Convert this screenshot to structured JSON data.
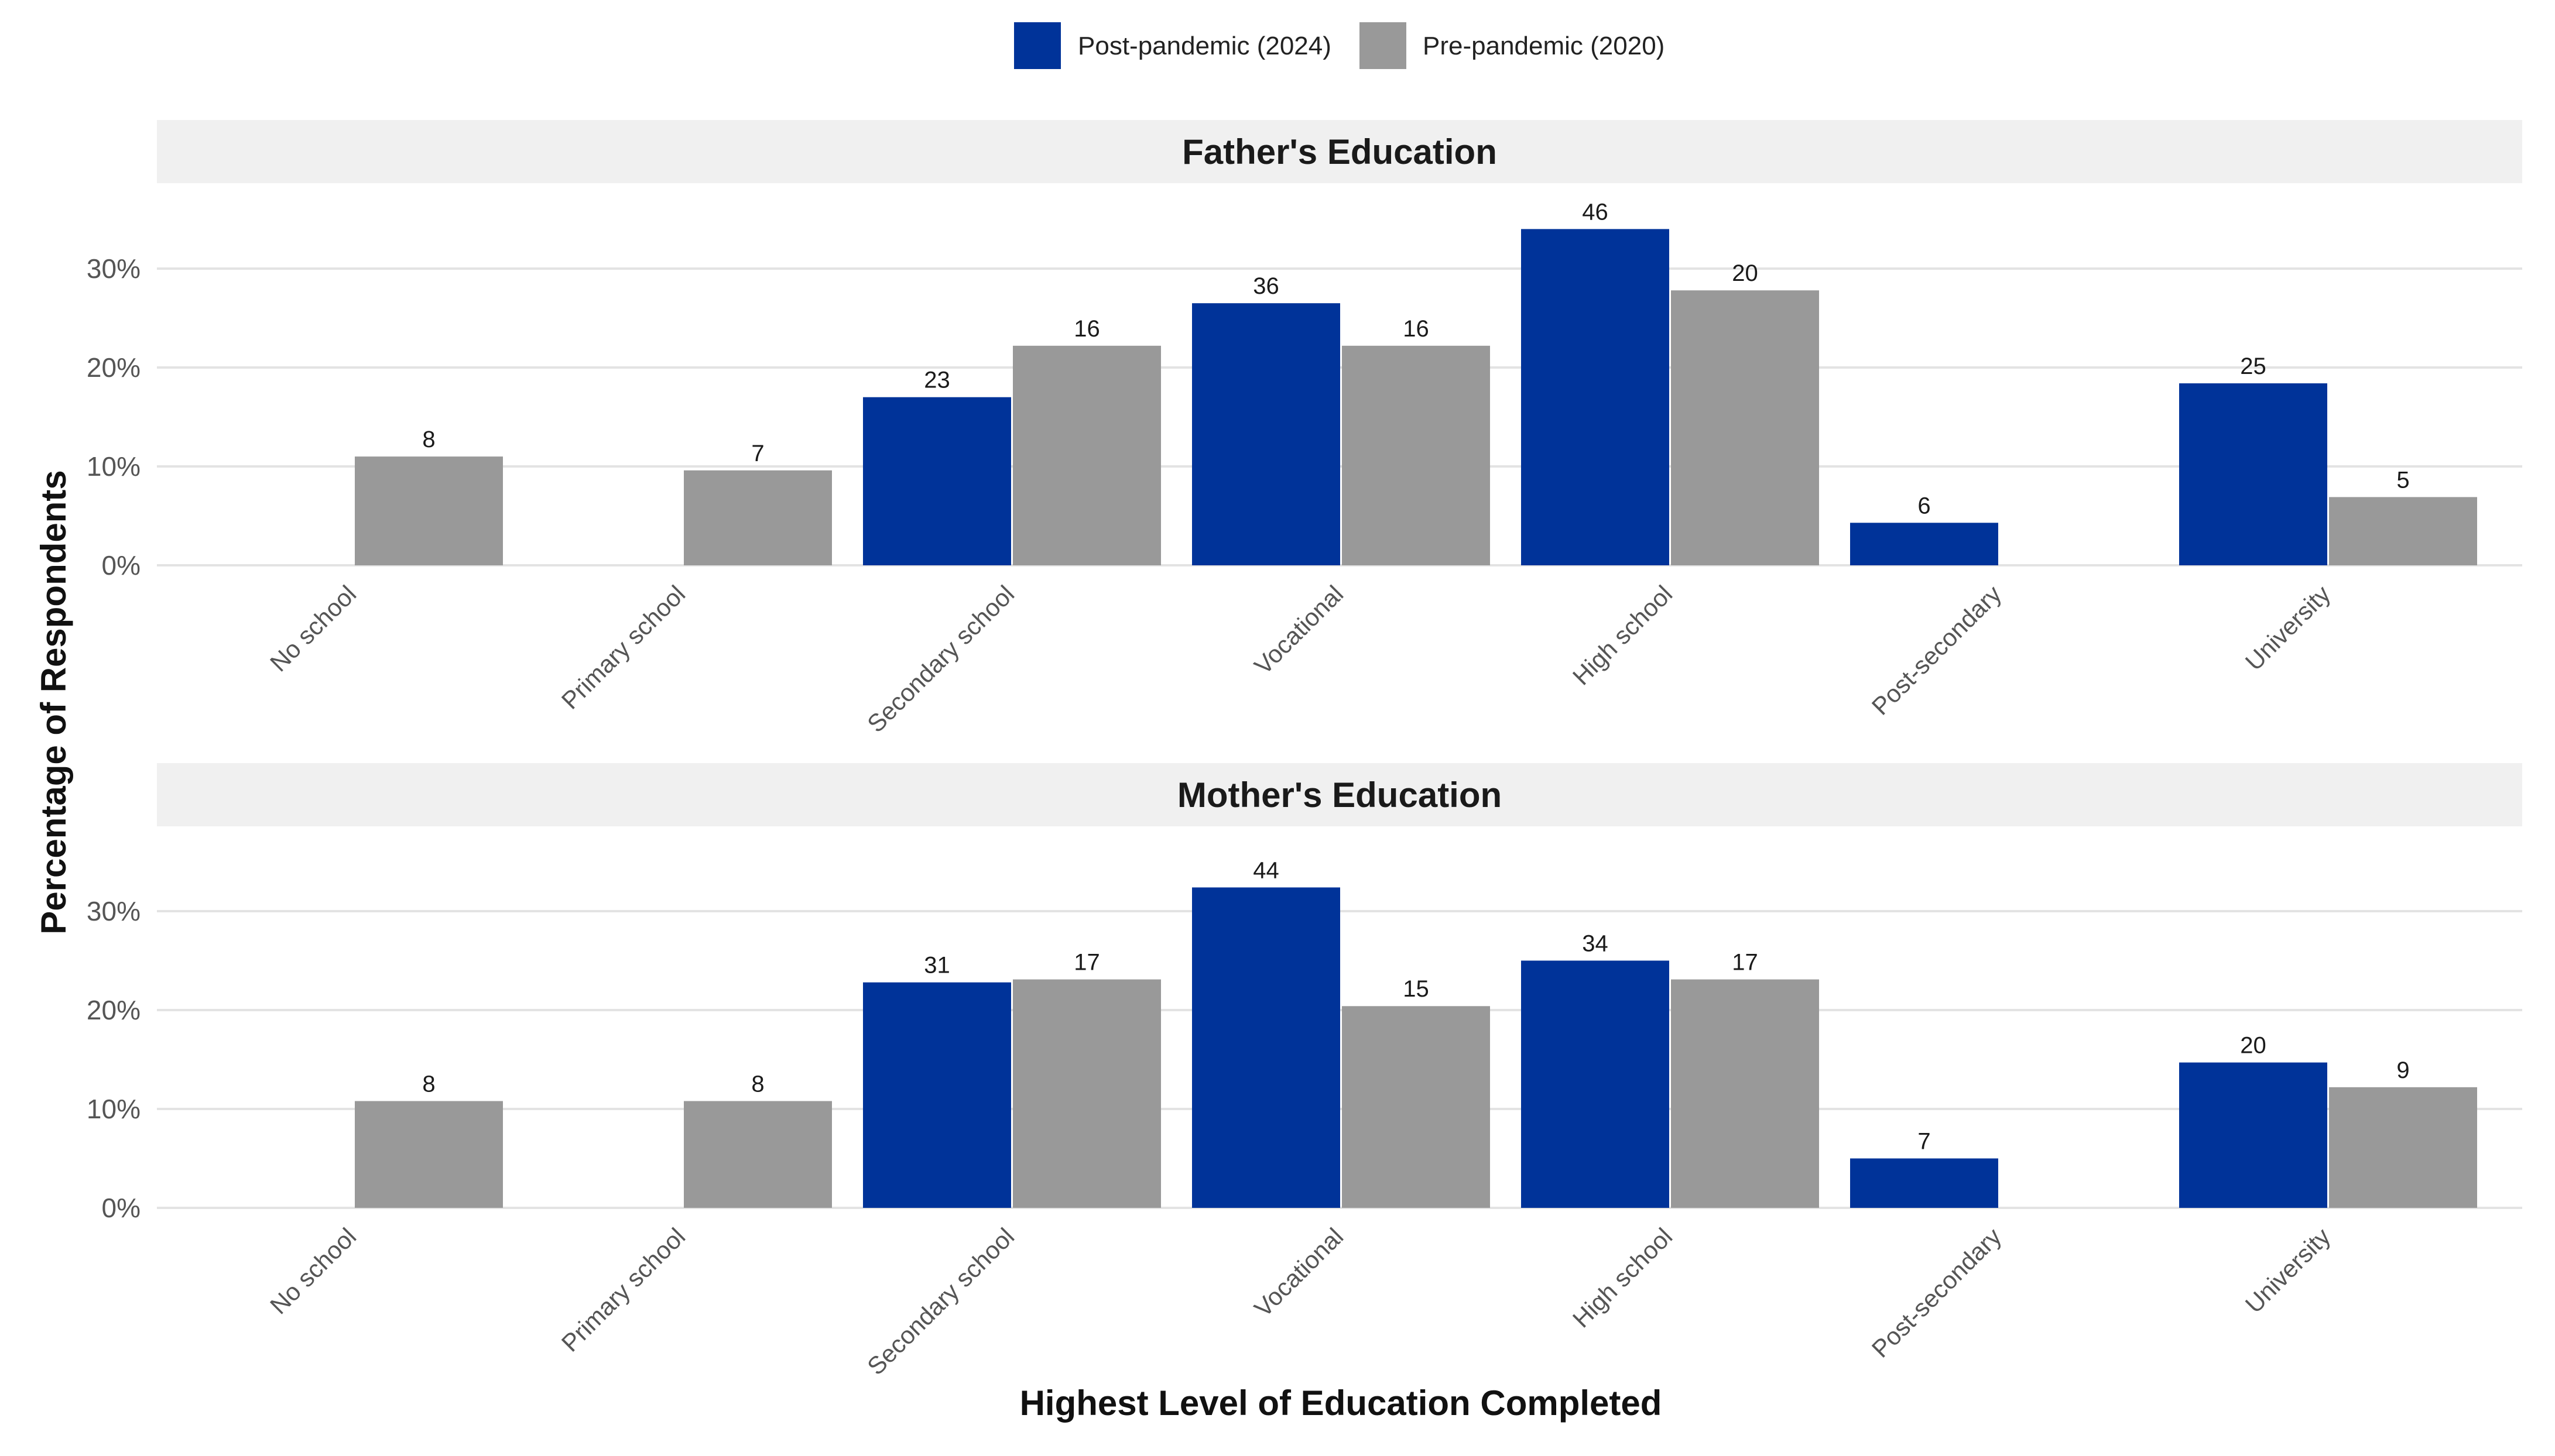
{
  "chart_data": {
    "type": "bar",
    "legend": {
      "position": "top",
      "entries": [
        {
          "name": "Post-pandemic (2024)",
          "color": "#003399"
        },
        {
          "name": "Pre-pandemic (2020)",
          "color": "#999999"
        }
      ]
    },
    "xlabel": "Highest Level of Education Completed",
    "ylabel": "Percentage of Respondents",
    "yticks": [
      "0%",
      "10%",
      "20%",
      "30%"
    ],
    "ylim": [
      0,
      35
    ],
    "categories": [
      "No school",
      "Primary school",
      "Secondary school",
      "Vocational",
      "High school",
      "Post-secondary",
      "University"
    ],
    "panels": [
      {
        "title": "Father's Education",
        "series": [
          {
            "name": "Post-pandemic (2024)",
            "values": [
              null,
              null,
              17,
              26.5,
              34,
              4.3,
              18.4
            ],
            "labels": [
              "",
              "",
              "23",
              "36",
              "46",
              "6",
              "25"
            ]
          },
          {
            "name": "Pre-pandemic (2020)",
            "values": [
              11,
              9.6,
              22.2,
              22.2,
              27.8,
              null,
              6.9
            ],
            "labels": [
              "8",
              "7",
              "16",
              "16",
              "20",
              "",
              "5"
            ]
          }
        ]
      },
      {
        "title": "Mother's Education",
        "series": [
          {
            "name": "Post-pandemic (2024)",
            "values": [
              null,
              null,
              22.8,
              32.4,
              25,
              5,
              14.7
            ],
            "labels": [
              "",
              "",
              "31",
              "44",
              "34",
              "7",
              "20"
            ]
          },
          {
            "name": "Pre-pandemic (2020)",
            "values": [
              10.8,
              10.8,
              23.1,
              20.4,
              23.1,
              null,
              12.2
            ],
            "labels": [
              "8",
              "8",
              "17",
              "15",
              "17",
              "",
              "9"
            ]
          }
        ]
      }
    ]
  }
}
